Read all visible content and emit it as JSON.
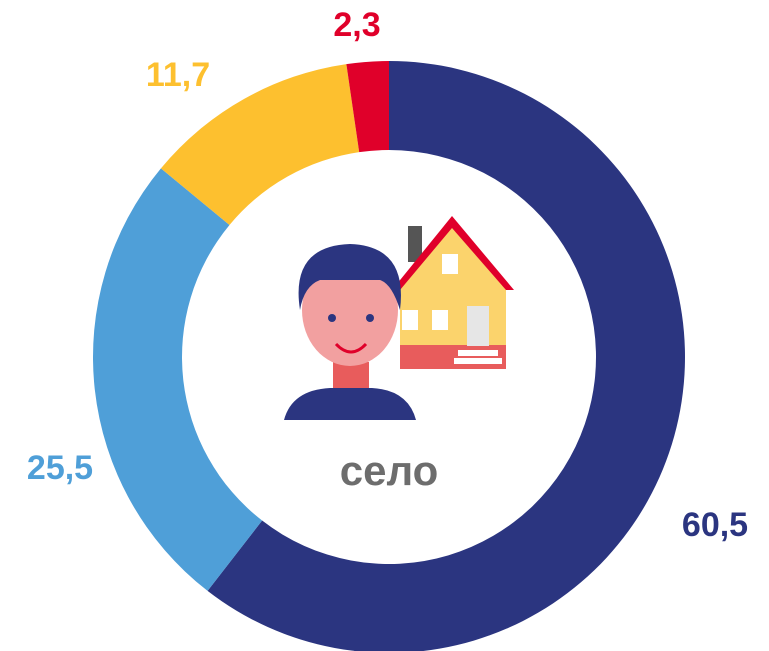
{
  "chart_data": {
    "type": "donut",
    "center_label": "село",
    "categories": [
      null,
      null,
      null,
      null
    ],
    "values": [
      60.5,
      25.5,
      11.7,
      2.3
    ],
    "value_labels": [
      "60,5",
      "25,5",
      "11,7",
      "2,3"
    ],
    "colors": [
      "#2b3580",
      "#4f9fd8",
      "#fdc02f",
      "#e0002a"
    ]
  }
}
